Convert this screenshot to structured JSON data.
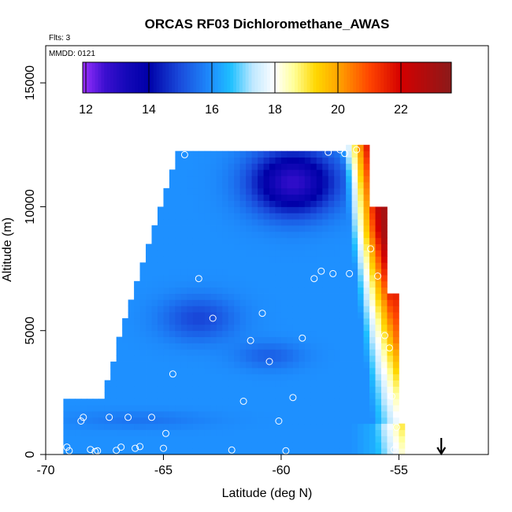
{
  "chart_data": {
    "type": "heatmap",
    "title": "ORCAS RF03 Dichloromethane_AWAS",
    "annotations": {
      "flights": "Flts: 3",
      "date": "MMDD: 0121"
    },
    "xlabel": "Latitude (deg N)",
    "ylabel": "Altitude (m)",
    "xlim": [
      -70,
      -51.2
    ],
    "ylim": [
      0,
      16500
    ],
    "x_ticks": [
      {
        "value": -70,
        "label": "-70"
      },
      {
        "value": -65,
        "label": "-65"
      },
      {
        "value": -60,
        "label": "-60"
      },
      {
        "value": -55,
        "label": "-55"
      }
    ],
    "y_ticks": [
      {
        "value": 0,
        "label": "0"
      },
      {
        "value": 5000,
        "label": "5000"
      },
      {
        "value": 10000,
        "label": "10000"
      },
      {
        "value": 15000,
        "label": "15000"
      }
    ],
    "colorbar": {
      "min": 11.9,
      "max": 23.6,
      "ticks": [
        {
          "value": 12,
          "label": "12"
        },
        {
          "value": 14,
          "label": "14"
        },
        {
          "value": 16,
          "label": "16"
        },
        {
          "value": 18,
          "label": "18"
        },
        {
          "value": 20,
          "label": "20"
        },
        {
          "value": 22,
          "label": "22"
        }
      ],
      "stops": [
        {
          "value": 11.9,
          "color": "#9b30ff"
        },
        {
          "value": 12.6,
          "color": "#3c0fd0"
        },
        {
          "value": 13.3,
          "color": "#1408b8"
        },
        {
          "value": 14.0,
          "color": "#0000a8"
        },
        {
          "value": 15.0,
          "color": "#1a4cdc"
        },
        {
          "value": 16.0,
          "color": "#1e90ff"
        },
        {
          "value": 16.6,
          "color": "#1ec0ff"
        },
        {
          "value": 17.3,
          "color": "#bfe8ff"
        },
        {
          "value": 18.0,
          "color": "#ffffff"
        },
        {
          "value": 18.6,
          "color": "#ffff99"
        },
        {
          "value": 19.3,
          "color": "#ffd700"
        },
        {
          "value": 20.0,
          "color": "#ffa500"
        },
        {
          "value": 21.0,
          "color": "#ff4500"
        },
        {
          "value": 22.0,
          "color": "#d40000"
        },
        {
          "value": 23.6,
          "color": "#8b1a1a"
        }
      ]
    },
    "field": {
      "lat_step": 0.25,
      "alt_step": 250,
      "columns": [
        {
          "lat_from": -69.25,
          "lat_to": -68.0,
          "alt_max": 2250
        },
        {
          "lat_from": -68.0,
          "lat_to": -64.5,
          "alt_max": 12250,
          "top_slope_per_deg": 3050
        },
        {
          "lat_from": -64.5,
          "lat_to": -57.25,
          "alt_max": 12250
        },
        {
          "lat_from": -57.25,
          "lat_to": -56.25,
          "alt_max": 12500
        },
        {
          "lat_from": -56.25,
          "lat_to": -55.5,
          "alt_max": 10000
        },
        {
          "lat_from": -55.5,
          "lat_to": -55.0,
          "alt_max": 6500
        },
        {
          "lat_from": -55.0,
          "lat_to": -54.75,
          "alt_max": 1250
        }
      ],
      "base_value": 16.0,
      "features": [
        {
          "name": "upper low-value core",
          "lat": -59.5,
          "alt": 11000,
          "value": 12.8
        },
        {
          "name": "mid-level tongue",
          "lat": -63.5,
          "alt": 5500,
          "value": 14.8
        },
        {
          "name": "lower tongue",
          "lat": -60.5,
          "alt": 4000,
          "value": 15.0
        },
        {
          "name": "boundary-layer band",
          "lat": -66.0,
          "alt": 1400,
          "value": 15.6
        },
        {
          "name": "northern high-value edge",
          "lat": -55.5,
          "alt": 11500,
          "value": 23.0
        }
      ]
    },
    "samples": [
      {
        "lat": -69.1,
        "alt": 300
      },
      {
        "lat": -69.0,
        "alt": 150
      },
      {
        "lat": -68.5,
        "alt": 1350
      },
      {
        "lat": -68.4,
        "alt": 1500
      },
      {
        "lat": -68.1,
        "alt": 200
      },
      {
        "lat": -67.9,
        "alt": 120
      },
      {
        "lat": -67.8,
        "alt": 150
      },
      {
        "lat": -67.3,
        "alt": 1500
      },
      {
        "lat": -67.0,
        "alt": 170
      },
      {
        "lat": -66.8,
        "alt": 300
      },
      {
        "lat": -66.5,
        "alt": 1500
      },
      {
        "lat": -66.2,
        "alt": 250
      },
      {
        "lat": -66.0,
        "alt": 320
      },
      {
        "lat": -65.5,
        "alt": 1500
      },
      {
        "lat": -65.0,
        "alt": 250
      },
      {
        "lat": -64.9,
        "alt": 850
      },
      {
        "lat": -64.6,
        "alt": 3250
      },
      {
        "lat": -64.1,
        "alt": 12100
      },
      {
        "lat": -63.5,
        "alt": 7100
      },
      {
        "lat": -62.9,
        "alt": 5500
      },
      {
        "lat": -62.1,
        "alt": 180
      },
      {
        "lat": -61.6,
        "alt": 2150
      },
      {
        "lat": -61.3,
        "alt": 4600
      },
      {
        "lat": -60.8,
        "alt": 5700
      },
      {
        "lat": -60.5,
        "alt": 3750
      },
      {
        "lat": -60.1,
        "alt": 1350
      },
      {
        "lat": -59.8,
        "alt": 150
      },
      {
        "lat": -59.5,
        "alt": 2300
      },
      {
        "lat": -59.1,
        "alt": 4700
      },
      {
        "lat": -58.6,
        "alt": 7100
      },
      {
        "lat": -58.3,
        "alt": 7400
      },
      {
        "lat": -58.0,
        "alt": 12200
      },
      {
        "lat": -57.8,
        "alt": 7300
      },
      {
        "lat": -57.5,
        "alt": 12300
      },
      {
        "lat": -57.3,
        "alt": 12150
      },
      {
        "lat": -57.1,
        "alt": 7300
      },
      {
        "lat": -56.8,
        "alt": 12300
      },
      {
        "lat": -56.2,
        "alt": 8300
      },
      {
        "lat": -55.9,
        "alt": 7200
      },
      {
        "lat": -55.6,
        "alt": 4800
      },
      {
        "lat": -55.4,
        "alt": 4300
      },
      {
        "lat": -55.3,
        "alt": 2350
      },
      {
        "lat": -55.05,
        "alt": 12500
      },
      {
        "lat": -55.1,
        "alt": 1100
      },
      {
        "lat": -55.2,
        "alt": 200
      }
    ],
    "marker": {
      "lat": -53.2,
      "direction": "down"
    }
  }
}
